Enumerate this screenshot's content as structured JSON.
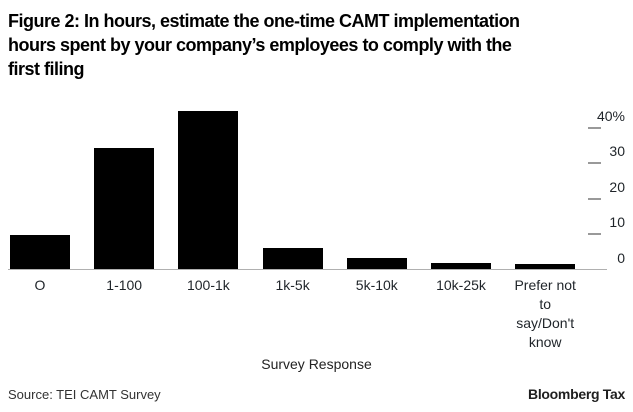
{
  "title": "Figure 2: In hours, estimate the one-time CAMT implementation\nhours spent by your company’s employees to comply with the\nfirst filing",
  "chart_data": {
    "type": "bar",
    "categories": [
      "O",
      "1-100",
      "100-1k",
      "1k-5k",
      "5k-10k",
      "10k-25k",
      "Prefer not to say/Don't know"
    ],
    "values": [
      9.5,
      34,
      44.5,
      6,
      3,
      1.7,
      1.5
    ],
    "title": "Figure 2: In hours, estimate the one-time CAMT implementation hours spent by your company’s employees to comply with the first filing",
    "xlabel": "Survey Response",
    "ylabel": "",
    "ylim": [
      0,
      45
    ],
    "y_ticks": [
      40,
      30,
      20,
      10,
      0
    ],
    "y_tick_labels": [
      "40%",
      "30",
      "20",
      "10",
      "0"
    ],
    "yaxis_position": "right",
    "grid": false,
    "legend": false,
    "bar_color": "#000000"
  },
  "colors": {
    "bar": "#000000",
    "axis_line": "#b0b0b0",
    "tick_dash": "#999999",
    "label_text": "#1f2429"
  },
  "footer": {
    "source": "Source: TEI CAMT Survey",
    "brand": "Bloomberg Tax"
  }
}
